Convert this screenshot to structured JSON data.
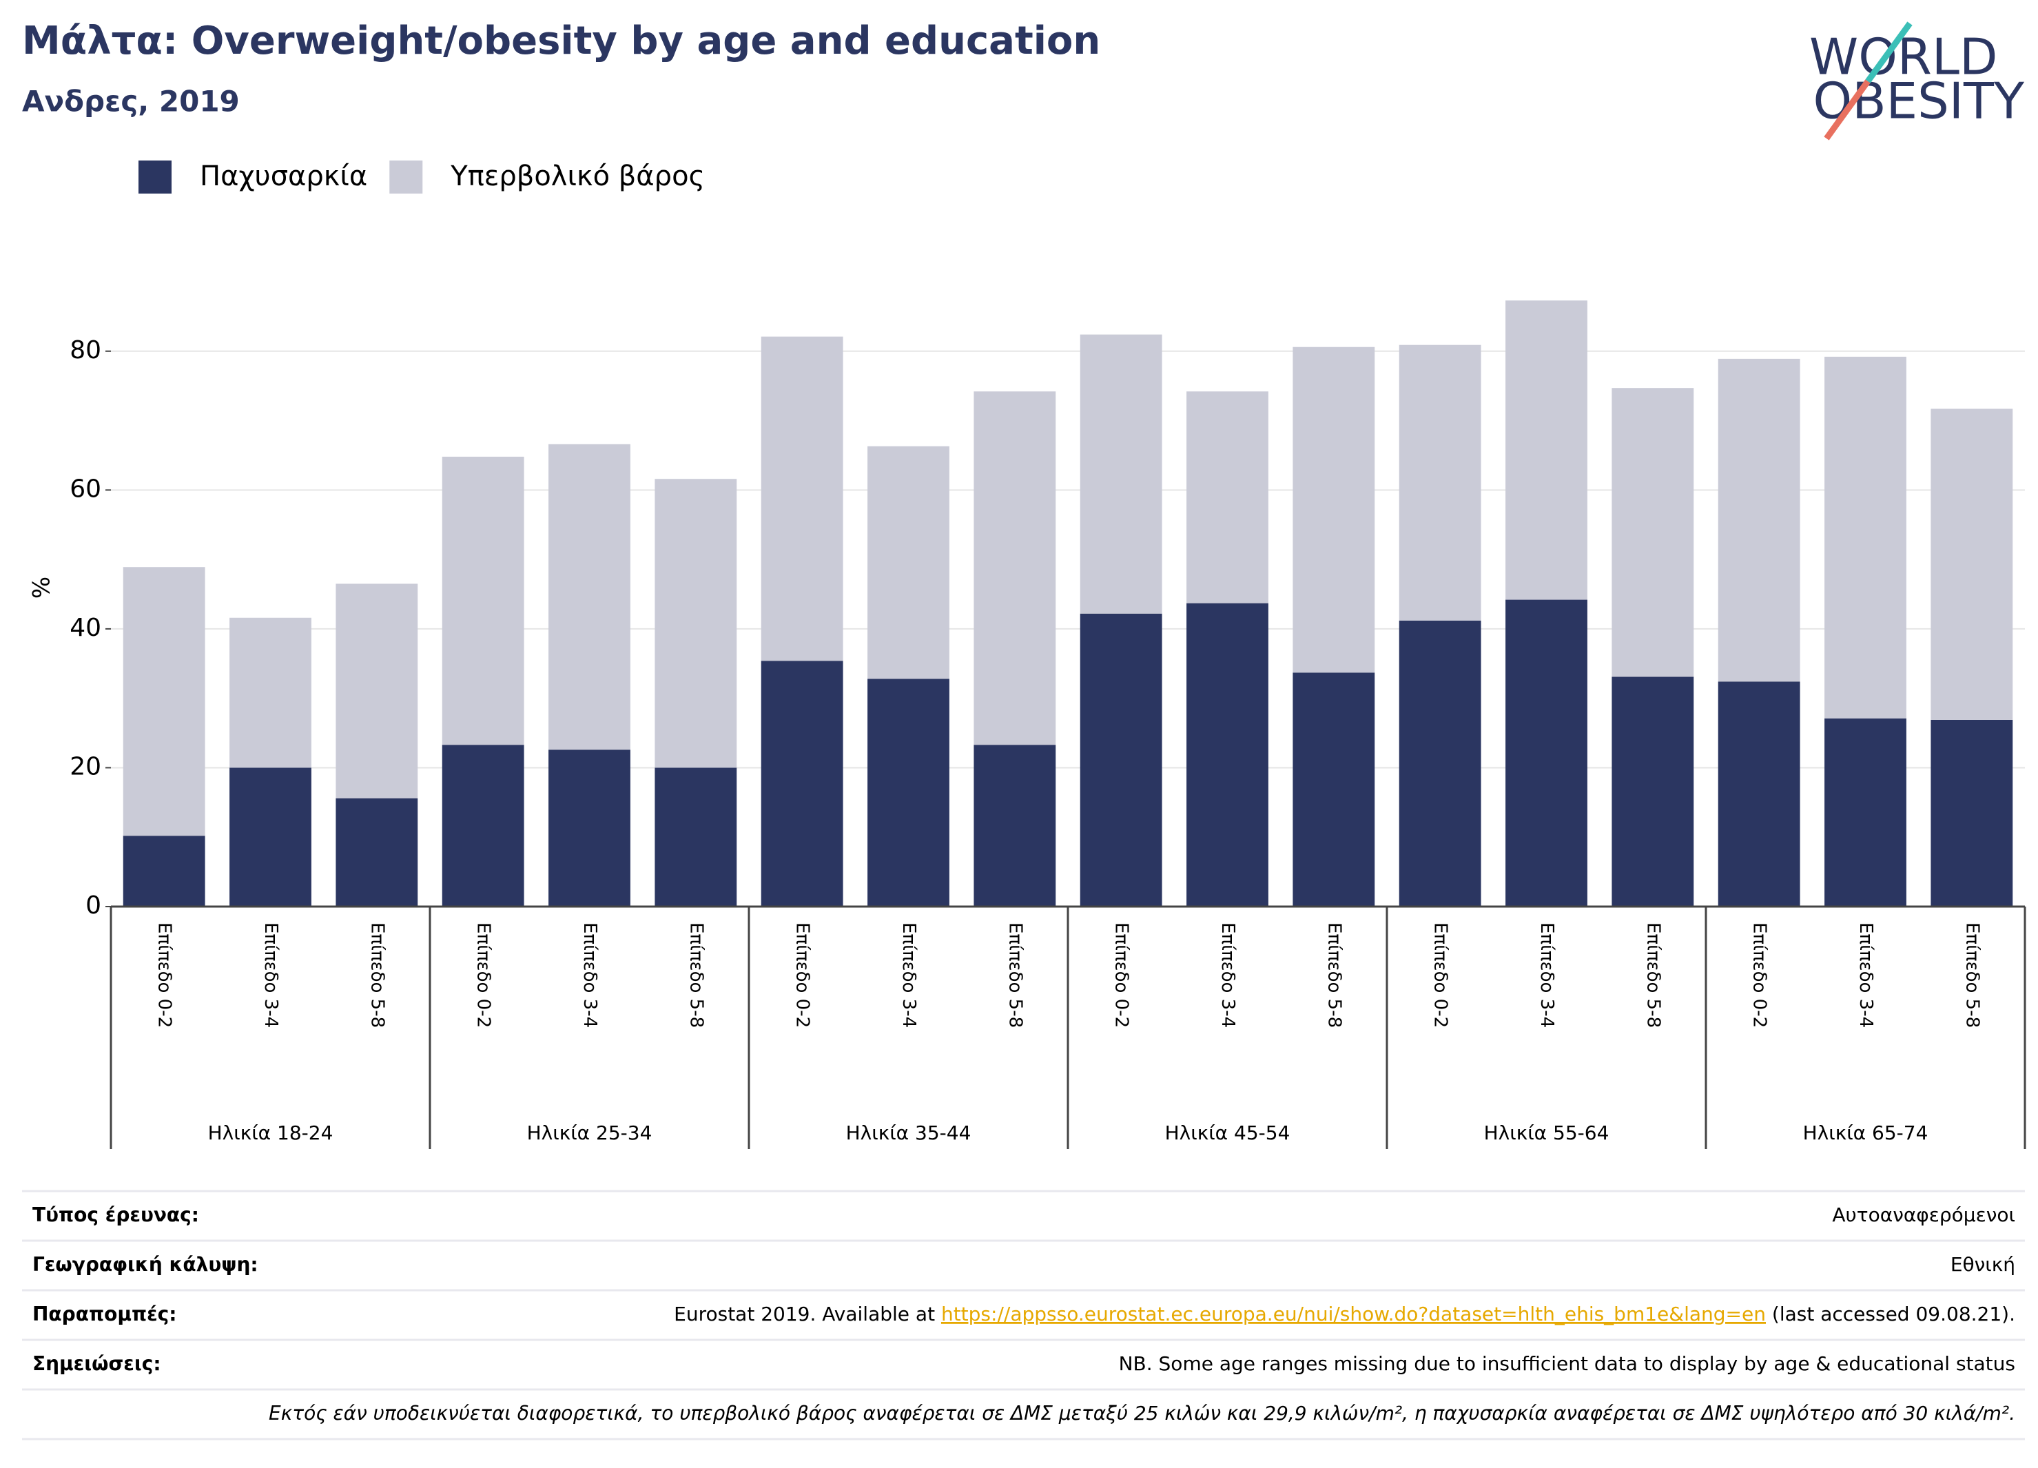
{
  "chart_data": {
    "type": "stacked_bar",
    "title": "Μάλτα: Overweight/obesity by age and education",
    "subtitle": "Ανδρες, 2019",
    "y_label": "%",
    "categories": [
      "Επίπεδο 0-2",
      "Επίπεδο 3-4",
      "Επίπεδο 5-8",
      "Επίπεδο 0-2",
      "Επίπεδο 3-4",
      "Επίπεδο 5-8",
      "Επίπεδο 0-2",
      "Επίπεδο 3-4",
      "Επίπεδο 5-8",
      "Επίπεδο 0-2",
      "Επίπεδο 3-4",
      "Επίπεδο 5-8",
      "Επίπεδο 0-2",
      "Επίπεδο 3-4",
      "Επίπεδο 5-8",
      "Επίπεδο 0-2",
      "Επίπεδο 3-4",
      "Επίπεδο 5-8"
    ],
    "groups": [
      "Ηλικία 18-24",
      "Ηλικία 25-34",
      "Ηλικία 35-44",
      "Ηλικία 45-54",
      "Ηλικία 55-64",
      "Ηλικία 65-74"
    ],
    "series": [
      {
        "name": "Παχυσαρκία",
        "color": "#2b3661",
        "values": [
          10.2,
          20.0,
          15.6,
          23.3,
          22.6,
          20.0,
          35.4,
          32.8,
          23.3,
          42.2,
          43.7,
          33.7,
          41.2,
          44.2,
          33.1,
          32.4,
          27.1,
          26.9
        ]
      },
      {
        "name": "Υπερβολικό βάρος",
        "color": "#cacbd7",
        "values": [
          38.7,
          21.6,
          30.9,
          41.5,
          44.0,
          41.6,
          46.7,
          33.5,
          50.9,
          40.2,
          30.5,
          46.9,
          39.7,
          43.1,
          41.6,
          46.5,
          52.1,
          44.8
        ]
      }
    ],
    "ylim": [
      0,
      90
    ],
    "yticks": [
      0,
      20,
      40,
      60,
      80
    ],
    "grid": true,
    "legend": "top-left"
  },
  "logo": {
    "line1": "WORLD",
    "line2": "OBESITY"
  },
  "footer": {
    "rows": [
      {
        "label": "Τύπος έρευνας:",
        "value": "Αυτοαναφερόμενοι"
      },
      {
        "label": "Γεωγραφική κάλυψη:",
        "value": "Εθνική"
      },
      {
        "label": "Παραπομπές:",
        "prefix": "Eurostat 2019. Available at ",
        "link": "https://appsso.eurostat.ec.europa.eu/nui/show.do?dataset=hlth_ehis_bm1e&lang=en",
        "suffix": " (last accessed 09.08.21)."
      },
      {
        "label": "Σημειώσεις:",
        "value": "NB. Some age ranges missing due to insufficient data to display by age & educational status"
      }
    ],
    "note": "Εκτός εάν υποδεικνύεται διαφορετικά, το υπερβολικό βάρος αναφέρεται σε ΔΜΣ μεταξύ 25 κιλών και 29,9 κιλών/m², η παχυσαρκία αναφέρεται σε ΔΜΣ υψηλότερο από 30 κιλά/m²."
  }
}
